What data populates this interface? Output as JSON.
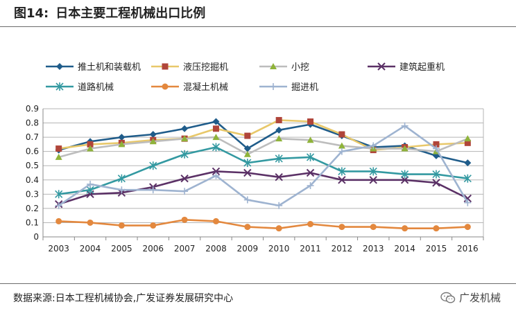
{
  "figure": {
    "label": "图14:",
    "title": "日本主要工程机械出口比例"
  },
  "source_text": "数据来源:日本工程机械协会,广发证券发展研究中心",
  "brand_text": "广发机械",
  "chart_data": {
    "type": "line",
    "x": [
      "2003",
      "2004",
      "2005",
      "2006",
      "2007",
      "2008",
      "2009",
      "2010",
      "2011",
      "2012",
      "2013",
      "2014",
      "2015",
      "2016"
    ],
    "ylim": [
      0,
      0.9
    ],
    "yticks": [
      "0",
      "0.1",
      "0.2",
      "0.3",
      "0.4",
      "0.5",
      "0.6",
      "0.7",
      "0.8",
      "0.9"
    ],
    "grid": "horizontal",
    "legend_position": "top",
    "series": [
      {
        "name": "推土机和装载机",
        "color": "#1f5c8a",
        "marker": "diamond",
        "values": [
          0.61,
          0.67,
          0.7,
          0.72,
          0.76,
          0.81,
          0.62,
          0.75,
          0.79,
          0.71,
          0.63,
          0.64,
          0.57,
          0.52
        ]
      },
      {
        "name": "液压挖掘机",
        "color": "#e8c86a",
        "marker": "square",
        "marker_color": "#b0453a",
        "values": [
          0.62,
          0.65,
          0.66,
          0.68,
          0.69,
          0.76,
          0.71,
          0.82,
          0.81,
          0.72,
          0.61,
          0.63,
          0.65,
          0.66
        ]
      },
      {
        "name": "小挖",
        "color": "#bdbdbd",
        "marker": "triangle",
        "marker_color": "#8fb33a",
        "values": [
          0.56,
          0.62,
          0.65,
          0.67,
          0.69,
          0.7,
          0.58,
          0.69,
          0.68,
          0.64,
          0.62,
          0.62,
          0.6,
          0.69
        ]
      },
      {
        "name": "建筑起重机",
        "color": "#5b3166",
        "marker": "x",
        "values": [
          0.23,
          0.3,
          0.31,
          0.35,
          0.41,
          0.46,
          0.45,
          0.42,
          0.45,
          0.4,
          0.4,
          0.4,
          0.38,
          0.27
        ]
      },
      {
        "name": "道路机械",
        "color": "#3399a1",
        "marker": "star",
        "values": [
          0.3,
          0.33,
          0.41,
          0.5,
          0.58,
          0.63,
          0.52,
          0.55,
          0.56,
          0.46,
          0.46,
          0.44,
          0.44,
          0.41
        ]
      },
      {
        "name": "混凝土机械",
        "color": "#e3883e",
        "marker": "circle",
        "values": [
          0.11,
          0.1,
          0.08,
          0.08,
          0.12,
          0.11,
          0.07,
          0.06,
          0.09,
          0.07,
          0.07,
          0.06,
          0.06,
          0.07
        ]
      },
      {
        "name": "掘进机",
        "color": "#9eb3d0",
        "marker": "plus",
        "values": [
          0.22,
          0.37,
          0.33,
          0.33,
          0.32,
          0.43,
          0.26,
          0.22,
          0.36,
          0.6,
          0.64,
          0.78,
          0.62,
          0.24
        ]
      }
    ]
  }
}
